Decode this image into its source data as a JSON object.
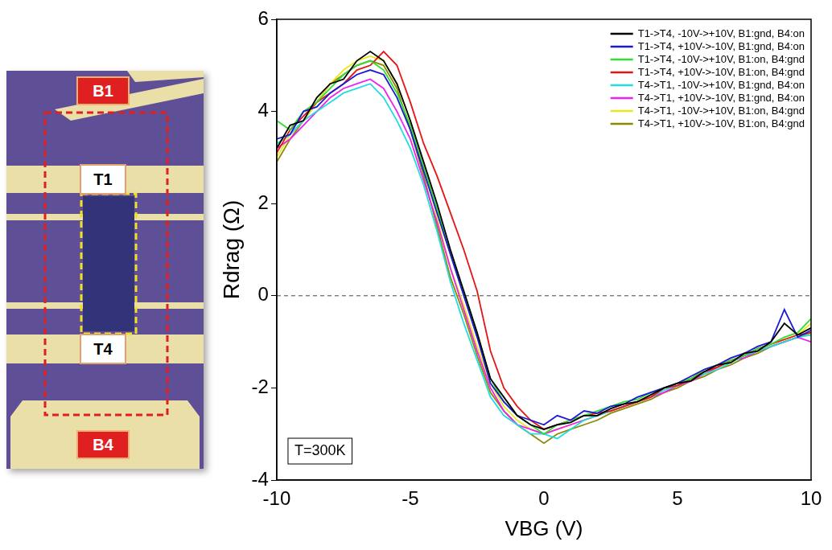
{
  "chart_data": {
    "type": "line",
    "x_label": "VBG (V)",
    "y_label": "Rdrag (Ω)",
    "annotation": "T=300K",
    "hline": 0,
    "xlim": [
      -10,
      10
    ],
    "xticks": [
      -10,
      -5,
      0,
      5,
      10
    ],
    "ylim": [
      -4,
      6
    ],
    "yticks": [
      -4,
      -2,
      0,
      2,
      4,
      6
    ],
    "grid": false,
    "legend": "upper right",
    "x": [
      -10,
      -9.5,
      -9,
      -8.5,
      -8,
      -7.5,
      -7,
      -6.5,
      -6,
      -5.5,
      -5,
      -4.5,
      -4,
      -3.5,
      -3,
      -2.5,
      -2,
      -1.5,
      -1,
      -0.5,
      0,
      0.5,
      1,
      1.5,
      2,
      2.5,
      3,
      3.5,
      4,
      4.5,
      5,
      5.5,
      6,
      6.5,
      7,
      7.5,
      8,
      8.5,
      9,
      9.5,
      10
    ],
    "series": [
      {
        "name": "T1->T4, -10V->+10V, B1:gnd, B4:on",
        "color": "#000000",
        "values": [
          3.2,
          3.7,
          3.8,
          4.3,
          4.6,
          4.7,
          5.1,
          5.3,
          5.1,
          4.6,
          3.8,
          2.9,
          2.0,
          1.0,
          0.1,
          -0.8,
          -1.8,
          -2.2,
          -2.6,
          -2.8,
          -2.9,
          -2.8,
          -2.75,
          -2.6,
          -2.6,
          -2.45,
          -2.35,
          -2.3,
          -2.15,
          -2.0,
          -1.9,
          -1.85,
          -1.65,
          -1.5,
          -1.45,
          -1.25,
          -1.2,
          -1.0,
          -0.6,
          -0.85,
          -0.7
        ]
      },
      {
        "name": "T1->T4, +10V->-10V, B1:gnd, B4:on",
        "color": "#1a1ad6",
        "values": [
          3.4,
          3.5,
          4.0,
          4.1,
          4.4,
          4.6,
          4.8,
          4.9,
          4.8,
          4.3,
          3.6,
          2.7,
          1.8,
          0.9,
          0.0,
          -0.9,
          -1.9,
          -2.3,
          -2.6,
          -2.7,
          -2.8,
          -2.6,
          -2.7,
          -2.5,
          -2.55,
          -2.4,
          -2.35,
          -2.2,
          -2.1,
          -2.0,
          -1.9,
          -1.75,
          -1.6,
          -1.5,
          -1.35,
          -1.25,
          -1.1,
          -1.0,
          -0.3,
          -0.9,
          -0.75
        ]
      },
      {
        "name": "T1->T4, -10V->+10V, B1:on, B4:gnd",
        "color": "#33dd33",
        "values": [
          3.8,
          3.6,
          4.0,
          4.2,
          4.5,
          4.8,
          5.0,
          5.1,
          4.9,
          4.4,
          3.7,
          2.8,
          1.9,
          0.9,
          0.1,
          -0.8,
          -1.8,
          -2.3,
          -2.6,
          -2.8,
          -3.0,
          -2.8,
          -2.7,
          -2.6,
          -2.5,
          -2.4,
          -2.3,
          -2.25,
          -2.1,
          -2.0,
          -1.9,
          -1.8,
          -1.6,
          -1.5,
          -1.4,
          -1.3,
          -1.15,
          -1.05,
          -0.9,
          -0.8,
          -0.5
        ]
      },
      {
        "name": "T1->T4, +10V->-10V, B1:on, B4:gnd",
        "color": "#e61414",
        "values": [
          3.1,
          3.6,
          3.9,
          4.2,
          4.4,
          4.6,
          4.9,
          5.0,
          5.3,
          5.0,
          4.2,
          3.3,
          2.6,
          1.8,
          1.0,
          0.1,
          -1.2,
          -2.0,
          -2.4,
          -2.7,
          -2.9,
          -2.8,
          -2.7,
          -2.6,
          -2.55,
          -2.5,
          -2.4,
          -2.3,
          -2.2,
          -2.0,
          -1.95,
          -1.8,
          -1.65,
          -1.55,
          -1.4,
          -1.3,
          -1.15,
          -1.05,
          -0.95,
          -0.85,
          -0.8
        ]
      },
      {
        "name": "T4->T1, -10V->+10V, B1:gnd, B4:on",
        "color": "#22dddd",
        "values": [
          3.3,
          3.5,
          3.8,
          4.0,
          4.2,
          4.4,
          4.5,
          4.6,
          4.3,
          3.8,
          3.2,
          2.4,
          1.4,
          0.3,
          -0.6,
          -1.4,
          -2.2,
          -2.6,
          -2.8,
          -3.0,
          -3.0,
          -3.1,
          -2.9,
          -2.7,
          -2.6,
          -2.5,
          -2.4,
          -2.3,
          -2.2,
          -2.05,
          -1.95,
          -1.8,
          -1.7,
          -1.6,
          -1.45,
          -1.3,
          -1.2,
          -1.1,
          -1.0,
          -0.9,
          -0.85
        ]
      },
      {
        "name": "T4->T1, +10V->-10V, B1:gnd, B4:on",
        "color": "#ee22ee",
        "values": [
          3.2,
          3.4,
          3.7,
          4.0,
          4.3,
          4.5,
          4.6,
          4.7,
          4.5,
          4.0,
          3.4,
          2.5,
          1.6,
          0.6,
          -0.3,
          -1.2,
          -2.0,
          -2.5,
          -2.8,
          -2.9,
          -3.0,
          -2.9,
          -2.8,
          -2.7,
          -2.6,
          -2.5,
          -2.4,
          -2.3,
          -2.2,
          -2.1,
          -1.95,
          -1.85,
          -1.7,
          -1.55,
          -1.4,
          -1.35,
          -1.2,
          -1.1,
          -1.0,
          -0.9,
          -1.0
        ]
      },
      {
        "name": "T4->T1, -10V->+10V, B1:on, B4:gnd",
        "color": "#e8e820",
        "values": [
          3.0,
          3.5,
          3.8,
          4.2,
          4.6,
          4.9,
          5.1,
          5.2,
          5.1,
          4.6,
          3.8,
          2.8,
          1.7,
          0.6,
          -0.2,
          -1.1,
          -1.9,
          -2.4,
          -2.7,
          -2.9,
          -3.0,
          -2.9,
          -2.8,
          -2.7,
          -2.6,
          -2.5,
          -2.4,
          -2.3,
          -2.15,
          -2.05,
          -1.9,
          -1.8,
          -1.7,
          -1.55,
          -1.45,
          -1.3,
          -1.2,
          -1.05,
          -0.95,
          -0.85,
          -0.6
        ]
      },
      {
        "name": "T4->T1, +10V->-10V, B1:on, B4:gnd",
        "color": "#8b8b00",
        "values": [
          2.9,
          3.4,
          3.8,
          4.2,
          4.6,
          4.8,
          5.0,
          5.1,
          5.0,
          4.5,
          3.6,
          2.6,
          1.5,
          0.4,
          -0.4,
          -1.3,
          -2.1,
          -2.5,
          -2.8,
          -3.0,
          -3.2,
          -3.0,
          -2.9,
          -2.8,
          -2.7,
          -2.55,
          -2.45,
          -2.35,
          -2.25,
          -2.1,
          -2.0,
          -1.85,
          -1.75,
          -1.6,
          -1.5,
          -1.35,
          -1.25,
          -1.1,
          -1.0,
          -0.9,
          -0.8
        ]
      }
    ]
  },
  "micrograph": {
    "labels": [
      "B1",
      "T1",
      "T4",
      "B4"
    ]
  }
}
